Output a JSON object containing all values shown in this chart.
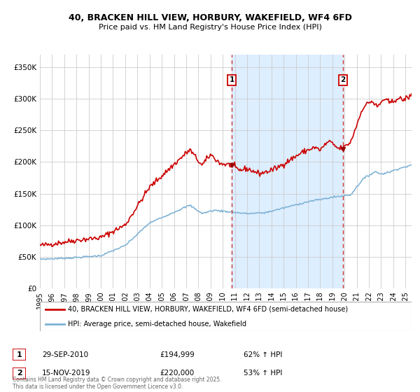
{
  "title_line1": "40, BRACKEN HILL VIEW, HORBURY, WAKEFIELD, WF4 6FD",
  "title_line2": "Price paid vs. HM Land Registry's House Price Index (HPI)",
  "legend_line1": "40, BRACKEN HILL VIEW, HORBURY, WAKEFIELD, WF4 6FD (semi-detached house)",
  "legend_line2": "HPI: Average price, semi-detached house, Wakefield",
  "annotation1_date": "29-SEP-2010",
  "annotation1_price": "£194,999",
  "annotation1_hpi": "62% ↑ HPI",
  "annotation2_date": "15-NOV-2019",
  "annotation2_price": "£220,000",
  "annotation2_hpi": "53% ↑ HPI",
  "footer": "Contains HM Land Registry data © Crown copyright and database right 2025.\nThis data is licensed under the Open Government Licence v3.0.",
  "red_line_color": "#cc0000",
  "blue_line_color": "#7ab0d4",
  "marker_color": "#990000",
  "dashed_line_color": "#cc3333",
  "shading_color": "#ddeeff",
  "bg_color": "#ffffff",
  "grid_color": "#cccccc",
  "annotation_box_color": "#cc0000",
  "ylim_max": 370000,
  "sale1_year": 2010.75,
  "sale2_year": 2019.88
}
